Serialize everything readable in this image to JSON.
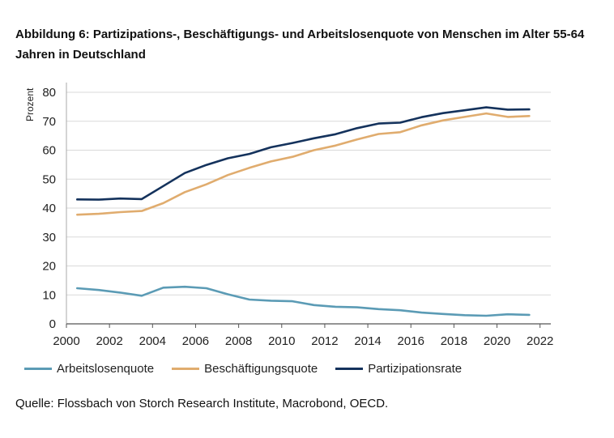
{
  "title": "Abbildung 6: Partizipations-, Beschäftigungs- und Arbeitslosenquote von Menschen im Alter 55-64 Jahren in Deutschland",
  "source": "Quelle: Flossbach von Storch Research Institute, Macrobond, OECD.",
  "chart_data": {
    "type": "line",
    "title": "Abbildung 6: Partizipations-, Beschäftigungs- und Arbeitslosenquote von Menschen im Alter 55-64 Jahren in Deutschland",
    "xlabel": "",
    "ylabel": "Prozent",
    "xlim": [
      2000,
      2022.5
    ],
    "ylim": [
      0,
      80
    ],
    "x_ticks": [
      "2000",
      "2002",
      "2004",
      "2006",
      "2008",
      "2010",
      "2012",
      "2014",
      "2016",
      "2018",
      "2020",
      "2022"
    ],
    "y_ticks": [
      "0",
      "10",
      "20",
      "30",
      "40",
      "50",
      "60",
      "70",
      "80"
    ],
    "grid": true,
    "x": [
      2000.5,
      2001.5,
      2002.5,
      2003.5,
      2004.5,
      2005.5,
      2006.5,
      2007.5,
      2008.5,
      2009.5,
      2010.5,
      2011.5,
      2012.5,
      2013.5,
      2014.5,
      2015.5,
      2016.5,
      2017.5,
      2018.5,
      2019.5,
      2020.5,
      2021.5
    ],
    "series": [
      {
        "name": "Arbeitslosenquote",
        "color": "#5b9bb5",
        "values": [
          12.3,
          11.7,
          10.8,
          9.7,
          12.5,
          12.8,
          12.3,
          10.2,
          8.4,
          8.0,
          7.8,
          6.5,
          5.9,
          5.7,
          5.1,
          4.7,
          3.9,
          3.4,
          3.0,
          2.8,
          3.3,
          3.1
        ]
      },
      {
        "name": "Beschäftigungsquote",
        "color": "#e0ac6e",
        "values": [
          37.7,
          38.0,
          38.6,
          39.0,
          41.7,
          45.5,
          48.2,
          51.4,
          53.9,
          56.1,
          57.7,
          60.0,
          61.6,
          63.7,
          65.6,
          66.2,
          68.6,
          70.3,
          71.5,
          72.7,
          71.5,
          71.8
        ]
      },
      {
        "name": "Partizipationsrate",
        "color": "#14325c",
        "values": [
          43.0,
          42.9,
          43.3,
          43.1,
          47.6,
          52.1,
          54.9,
          57.2,
          58.7,
          61.0,
          62.5,
          64.1,
          65.5,
          67.6,
          69.2,
          69.5,
          71.4,
          72.8,
          73.8,
          74.8,
          74.0,
          74.1
        ]
      }
    ]
  }
}
